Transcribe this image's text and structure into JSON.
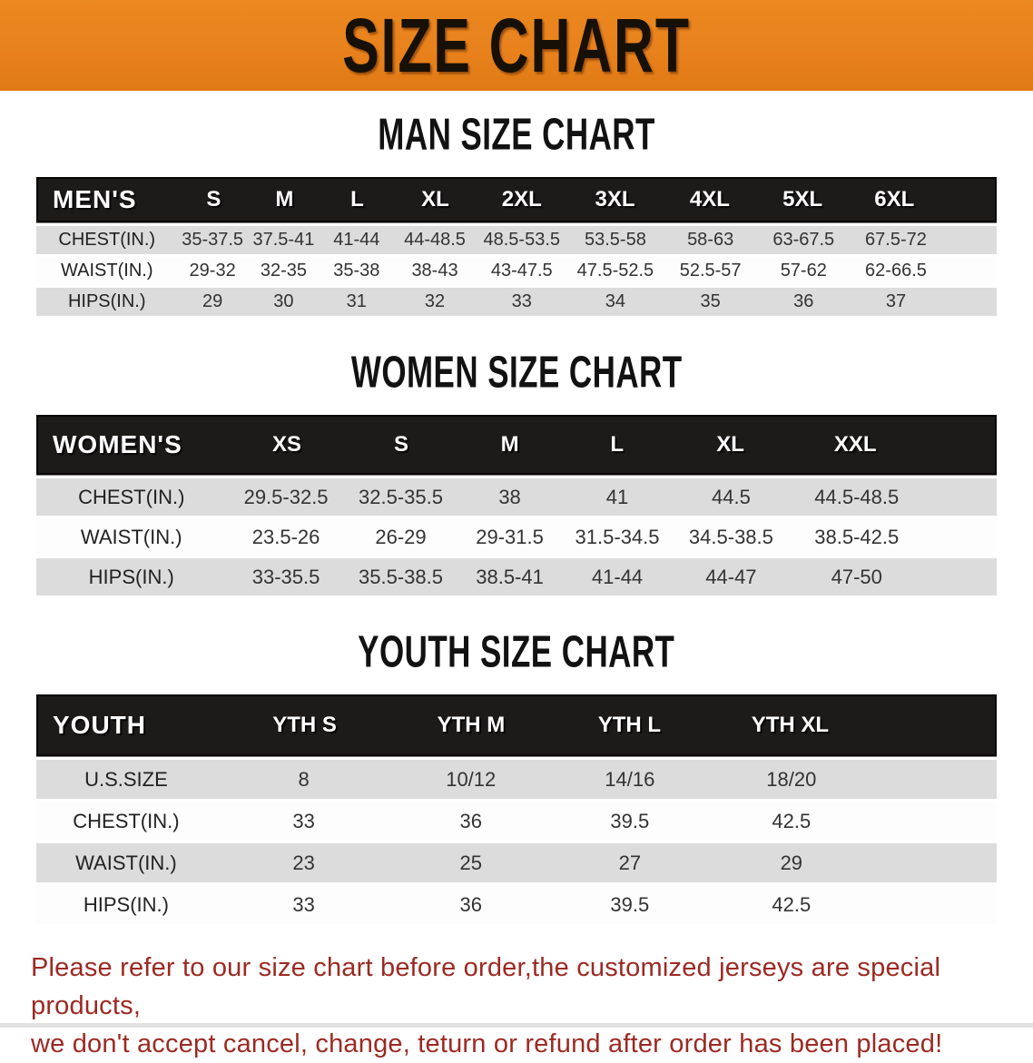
{
  "banner": {
    "title": "SIZE CHART",
    "bg_color": "#e8811c",
    "text_color": "#171007"
  },
  "sections": [
    {
      "id": "mens",
      "heading": "MAN SIZE CHART",
      "table": {
        "header": [
          "MEN'S",
          "S",
          "M",
          "L",
          "XL",
          "2XL",
          "3XL",
          "4XL",
          "5XL",
          "6XL"
        ],
        "rows": [
          {
            "key": "chest",
            "label": "CHEST(IN.)",
            "values": [
              "35-37.5",
              "37.5-41",
              "41-44",
              "44-48.5",
              "48.5-53.5",
              "53.5-58",
              "58-63",
              "63-67.5",
              "67.5-72"
            ]
          },
          {
            "key": "waist",
            "label": "WAIST(IN.)",
            "values": [
              "29-32",
              "32-35",
              "35-38",
              "38-43",
              "43-47.5",
              "47.5-52.5",
              "52.5-57",
              "57-62",
              "62-66.5"
            ]
          },
          {
            "key": "hips",
            "label": "HIPS(IN.)",
            "values": [
              "29",
              "30",
              "31",
              "32",
              "33",
              "34",
              "35",
              "36",
              "37"
            ]
          }
        ]
      }
    },
    {
      "id": "womens",
      "heading": "WOMEN SIZE CHART",
      "table": {
        "header": [
          "WOMEN'S",
          "XS",
          "S",
          "M",
          "L",
          "XL",
          "XXL"
        ],
        "rows": [
          {
            "key": "chest",
            "label": "CHEST(IN.)",
            "values": [
              "29.5-32.5",
              "32.5-35.5",
              "38",
              "41",
              "44.5",
              "44.5-48.5"
            ]
          },
          {
            "key": "waist",
            "label": "WAIST(IN.)",
            "values": [
              "23.5-26",
              "26-29",
              "29-31.5",
              "31.5-34.5",
              "34.5-38.5",
              "38.5-42.5"
            ]
          },
          {
            "key": "hips",
            "label": "HIPS(IN.)",
            "values": [
              "33-35.5",
              "35.5-38.5",
              "38.5-41",
              "41-44",
              "44-47",
              "47-50"
            ]
          }
        ]
      }
    },
    {
      "id": "youth",
      "heading": "YOUTH SIZE CHART",
      "table": {
        "header": [
          "YOUTH",
          "YTH S",
          "YTH M",
          "YTH L",
          "YTH XL"
        ],
        "rows": [
          {
            "key": "us-size",
            "label": "U.S.SIZE",
            "values": [
              "8",
              "10/12",
              "14/16",
              "18/20"
            ]
          },
          {
            "key": "chest",
            "label": "CHEST(IN.)",
            "values": [
              "33",
              "36",
              "39.5",
              "42.5"
            ]
          },
          {
            "key": "waist",
            "label": "WAIST(IN.)",
            "values": [
              "23",
              "25",
              "27",
              "29"
            ]
          },
          {
            "key": "hips",
            "label": "HIPS(IN.)",
            "values": [
              "33",
              "36",
              "39.5",
              "42.5"
            ]
          }
        ]
      }
    }
  ],
  "disclaimer": {
    "line1": "Please refer to our size chart before order,the customized jerseys are special products,",
    "line2": "we don't accept cancel, change, teturn or refund after order has been placed!",
    "color": "#9c2a23"
  }
}
